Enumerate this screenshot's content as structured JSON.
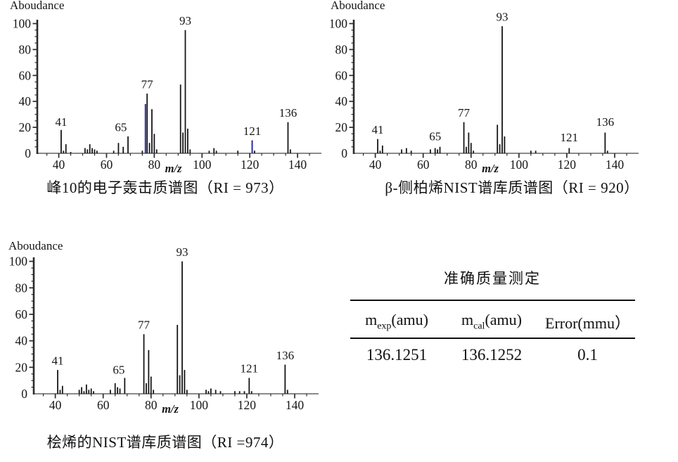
{
  "colors": {
    "bar": "#161616",
    "bar_highlight": "#2a2aa2",
    "axis": "#2b2b2b",
    "xaxis": "#8a8a8a"
  },
  "chart_data": [
    {
      "type": "bar",
      "title": "峰10的电子轰击质谱图（RI = 973）",
      "ylabel": "Aboudance",
      "xlabel": "m/z",
      "xlim": [
        31,
        150
      ],
      "ylim": [
        0,
        103
      ],
      "xticks": [
        40,
        60,
        80,
        100,
        120,
        140
      ],
      "yticks": [
        0,
        20,
        40,
        60,
        80,
        100
      ],
      "peaks": [
        [
          41,
          18
        ],
        [
          42,
          2
        ],
        [
          43,
          7
        ],
        [
          45,
          1
        ],
        [
          51,
          4
        ],
        [
          52,
          3
        ],
        [
          53,
          7
        ],
        [
          54,
          4
        ],
        [
          55,
          3
        ],
        [
          56,
          2
        ],
        [
          63,
          2
        ],
        [
          65,
          8
        ],
        [
          67,
          5
        ],
        [
          69,
          13
        ],
        [
          75,
          2
        ],
        [
          77,
          46
        ],
        [
          78,
          8
        ],
        [
          79,
          34
        ],
        [
          80,
          15
        ],
        [
          81,
          3
        ],
        [
          91,
          53
        ],
        [
          92,
          16
        ],
        [
          93,
          95
        ],
        [
          94,
          19
        ],
        [
          95,
          3
        ],
        [
          103,
          2
        ],
        [
          105,
          4
        ],
        [
          106,
          2
        ],
        [
          115,
          2
        ],
        [
          122,
          2
        ],
        [
          136,
          24
        ],
        [
          137,
          3
        ]
      ],
      "peaks_blue": [
        [
          76.3,
          38
        ],
        [
          121,
          10
        ]
      ],
      "labels": [
        {
          "text": "41",
          "x": 41,
          "y": 20
        },
        {
          "text": "65",
          "x": 66,
          "y": 16
        },
        {
          "text": "77",
          "x": 77,
          "y": 49
        },
        {
          "text": "93",
          "x": 93,
          "y": 98
        },
        {
          "text": "121",
          "x": 121,
          "y": 13
        },
        {
          "text": "136",
          "x": 136,
          "y": 27
        }
      ]
    },
    {
      "type": "bar",
      "title": "β-侧柏烯NIST谱库质谱图（RI = 920）",
      "ylabel": "Aboudance",
      "xlabel": "m/z",
      "xlim": [
        31,
        150
      ],
      "ylim": [
        0,
        103
      ],
      "xticks": [
        40,
        60,
        80,
        100,
        120,
        140
      ],
      "yticks": [
        0,
        20,
        40,
        60,
        80,
        100
      ],
      "peaks": [
        [
          41,
          11
        ],
        [
          42,
          2
        ],
        [
          43,
          6
        ],
        [
          51,
          3
        ],
        [
          53,
          4
        ],
        [
          55,
          2
        ],
        [
          63,
          3
        ],
        [
          65,
          4
        ],
        [
          66,
          3
        ],
        [
          67,
          5
        ],
        [
          77,
          24
        ],
        [
          78,
          5
        ],
        [
          79,
          16
        ],
        [
          80,
          8
        ],
        [
          81,
          2
        ],
        [
          91,
          22
        ],
        [
          92,
          7
        ],
        [
          93,
          98
        ],
        [
          94,
          13
        ],
        [
          105,
          2
        ],
        [
          107,
          2
        ],
        [
          121,
          4
        ],
        [
          136,
          16
        ],
        [
          137,
          2
        ]
      ],
      "peaks_blue": [],
      "labels": [
        {
          "text": "41",
          "x": 41,
          "y": 14
        },
        {
          "text": "65",
          "x": 65,
          "y": 9
        },
        {
          "text": "77",
          "x": 77,
          "y": 27
        },
        {
          "text": "93",
          "x": 93,
          "y": 101
        },
        {
          "text": "121",
          "x": 121,
          "y": 8
        },
        {
          "text": "136",
          "x": 136,
          "y": 20
        }
      ]
    },
    {
      "type": "bar",
      "title": "桧烯的NIST谱库质谱图（RI =974）",
      "ylabel": "Aboudance",
      "xlabel": "m/z",
      "xlim": [
        31,
        150
      ],
      "ylim": [
        0,
        103
      ],
      "xticks": [
        40,
        60,
        80,
        100,
        120,
        140
      ],
      "yticks": [
        0,
        20,
        40,
        60,
        80,
        100
      ],
      "peaks": [
        [
          41,
          18
        ],
        [
          42,
          3
        ],
        [
          43,
          6
        ],
        [
          50,
          3
        ],
        [
          51,
          5
        ],
        [
          52,
          2
        ],
        [
          53,
          7
        ],
        [
          54,
          3
        ],
        [
          55,
          4
        ],
        [
          56,
          2
        ],
        [
          63,
          3
        ],
        [
          65,
          8
        ],
        [
          66,
          5
        ],
        [
          67,
          4
        ],
        [
          69,
          12
        ],
        [
          77,
          45
        ],
        [
          78,
          8
        ],
        [
          79,
          33
        ],
        [
          80,
          13
        ],
        [
          81,
          3
        ],
        [
          91,
          52
        ],
        [
          92,
          14
        ],
        [
          93,
          100
        ],
        [
          94,
          18
        ],
        [
          95,
          3
        ],
        [
          103,
          3
        ],
        [
          104,
          2
        ],
        [
          105,
          4
        ],
        [
          107,
          3
        ],
        [
          109,
          2
        ],
        [
          115,
          2
        ],
        [
          117,
          2
        ],
        [
          119,
          2
        ],
        [
          121,
          12
        ],
        [
          122,
          2
        ],
        [
          136,
          22
        ],
        [
          137,
          3
        ]
      ],
      "peaks_blue": [],
      "labels": [
        {
          "text": "41",
          "x": 41,
          "y": 21
        },
        {
          "text": "65",
          "x": 66.5,
          "y": 14
        },
        {
          "text": "77",
          "x": 77,
          "y": 48
        },
        {
          "text": "93",
          "x": 93,
          "y": 103
        },
        {
          "text": "121",
          "x": 121,
          "y": 15
        },
        {
          "text": "136",
          "x": 136,
          "y": 25
        }
      ]
    }
  ],
  "table": {
    "title": "准确质量测定",
    "columns": [
      {
        "base": "m",
        "sub": "exp",
        "suffix": "(amu)"
      },
      {
        "base": "m",
        "sub": "cal",
        "suffix": "(amu)"
      },
      {
        "base": "Error(mmu）",
        "sub": "",
        "suffix": ""
      }
    ],
    "rows": [
      [
        "136.1251",
        "136.1252",
        "0.1"
      ]
    ]
  }
}
